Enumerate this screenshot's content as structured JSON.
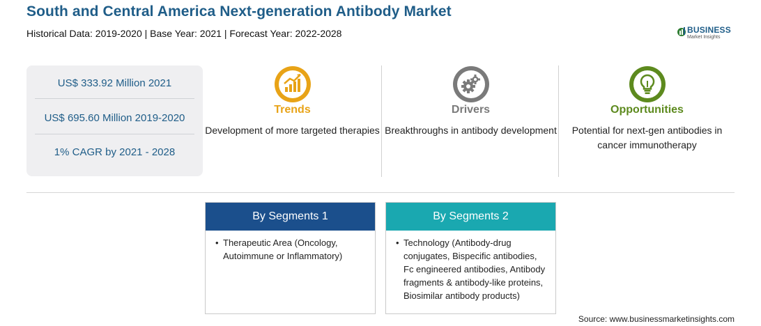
{
  "header": {
    "title": "South and Central America Next-generation Antibody Market",
    "subtitle": "Historical Data: 2019-2020 | Base Year: 2021 | Forecast Year: 2022-2028"
  },
  "logo": {
    "main": "BUSINESS",
    "sub": "Market Insights"
  },
  "stats": [
    "US$ 333.92 Million 2021",
    "US$ 695.60 Million 2019-2020",
    "1% CAGR by 2021 - 2028"
  ],
  "columns": [
    {
      "icon": "trending-chart-icon",
      "heading": "Trends",
      "color": "#e8a317",
      "description": "Development of more targeted therapies"
    },
    {
      "icon": "gears-icon",
      "heading": "Drivers",
      "color": "#7a7a7a",
      "description": "Breakthroughs in antibody development"
    },
    {
      "icon": "lightbulb-icon",
      "heading": "Opportunities",
      "color": "#5d8a1e",
      "description": "Potential for next-gen antibodies in cancer immunotherapy"
    }
  ],
  "segments": [
    {
      "title": "By Segments 1",
      "color": "#1b4f8c",
      "items": [
        "Therapeutic Area (Oncology, Autoimmune or Inflammatory)"
      ]
    },
    {
      "title": "By Segments 2",
      "color": "#1aa8b0",
      "items": [
        "Technology (Antibody-drug conjugates, Bispecific antibodies, Fc engineered antibodies, Antibody fragments & antibody-like proteins, Biosimilar antibody products)"
      ]
    }
  ],
  "source": "Source: www.businessmarketinsights.com"
}
